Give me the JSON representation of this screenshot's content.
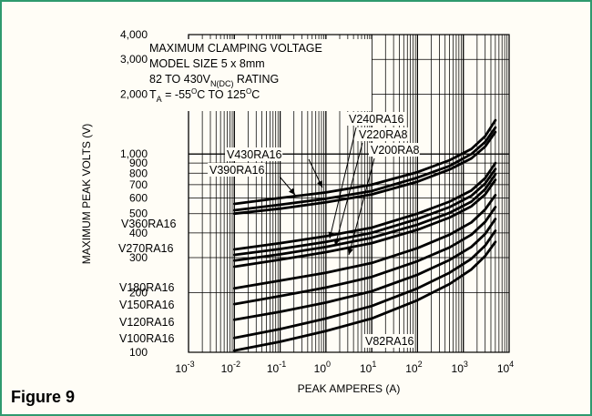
{
  "colors": {
    "frame": "#2f9a6e",
    "background": "#fffdf6",
    "ink": "#000000"
  },
  "figure_caption": "Figure 9",
  "chart_data": {
    "type": "line",
    "title": "",
    "annotation_lines": [
      {
        "main": "MAXIMUM CLAMPING VOLTAGE"
      },
      {
        "main": "MODEL SIZE 5 x 8mm"
      },
      {
        "main": "82 TO 430V",
        "sub": "N(DC)",
        "rest": " RATING"
      },
      {
        "main": "T",
        "sub": "A",
        "rest": " = -55",
        "sup": "O",
        "rest2": "C TO 125",
        "sup2": "O",
        "rest3": "C"
      }
    ],
    "xlabel": "PEAK AMPERES (A)",
    "ylabel": "MAXIMUM PEAK VOLTS (V)",
    "x_scale": "log",
    "y_scale": "log",
    "xlim": [
      0.001,
      10000
    ],
    "ylim": [
      100,
      4000
    ],
    "grid": true,
    "x_ticks": [
      {
        "value": 0.001,
        "base": "10",
        "exp": "-3"
      },
      {
        "value": 0.01,
        "base": "10",
        "exp": "-2"
      },
      {
        "value": 0.1,
        "base": "10",
        "exp": "-1"
      },
      {
        "value": 1,
        "base": "10",
        "exp": "0"
      },
      {
        "value": 10,
        "base": "10",
        "exp": "1"
      },
      {
        "value": 100,
        "base": "10",
        "exp": "2"
      },
      {
        "value": 1000,
        "base": "10",
        "exp": "3"
      },
      {
        "value": 10000,
        "base": "10",
        "exp": "4"
      }
    ],
    "y_ticks": [
      {
        "value": 4000,
        "label": "4,000"
      },
      {
        "value": 3000,
        "label": "3,000"
      },
      {
        "value": 2000,
        "label": "2,000"
      },
      {
        "value": 1000,
        "label": "1,000"
      },
      {
        "value": 900,
        "label": "900"
      },
      {
        "value": 800,
        "label": "800"
      },
      {
        "value": 700,
        "label": "700"
      },
      {
        "value": 600,
        "label": "600"
      },
      {
        "value": 500,
        "label": "500"
      },
      {
        "value": 400,
        "label": "400"
      },
      {
        "value": 300,
        "label": "300"
      },
      {
        "value": 200,
        "label": "200"
      },
      {
        "value": 100,
        "label": "100"
      }
    ],
    "series": [
      {
        "name": "V430RA16",
        "x": [
          0.01,
          0.1,
          1,
          10,
          100,
          500,
          1500,
          3000,
          5000
        ],
        "y": [
          560,
          600,
          640,
          700,
          810,
          930,
          1060,
          1230,
          1480
        ]
      },
      {
        "name": "V390RA16",
        "x": [
          0.01,
          0.1,
          1,
          10,
          100,
          500,
          1500,
          3000,
          5000
        ],
        "y": [
          520,
          555,
          595,
          650,
          760,
          870,
          1000,
          1150,
          1360
        ]
      },
      {
        "name": "V360RA16",
        "x": [
          0.01,
          0.1,
          1,
          10,
          100,
          500,
          1500,
          3000,
          5000
        ],
        "y": [
          500,
          530,
          570,
          625,
          725,
          835,
          950,
          1090,
          1290
        ]
      },
      {
        "name": "V240RA16",
        "x": [
          0.01,
          0.1,
          1,
          10,
          100,
          500,
          1500,
          3000,
          5000
        ],
        "y": [
          330,
          355,
          385,
          425,
          500,
          575,
          655,
          755,
          900
        ]
      },
      {
        "name": "V220RA8",
        "x": [
          0.01,
          0.1,
          1,
          10,
          100,
          500,
          1500,
          3000,
          5000
        ],
        "y": [
          310,
          332,
          360,
          400,
          470,
          540,
          615,
          710,
          840
        ]
      },
      {
        "name": "V200RA8",
        "x": [
          0.01,
          0.1,
          1,
          10,
          100,
          500,
          1500,
          3000,
          5000
        ],
        "y": [
          290,
          312,
          340,
          378,
          440,
          505,
          575,
          665,
          790
        ]
      },
      {
        "name": "V270RA16",
        "x": [
          0.01,
          0.1,
          1,
          10,
          100,
          500,
          1500,
          3000,
          5000
        ],
        "y": [
          270,
          293,
          320,
          355,
          415,
          478,
          545,
          625,
          740
        ]
      },
      {
        "name": "V180RA16",
        "x": [
          0.01,
          0.1,
          1,
          10,
          100,
          500,
          1500,
          3000,
          5000
        ],
        "y": [
          210,
          230,
          252,
          282,
          335,
          392,
          452,
          525,
          620
        ]
      },
      {
        "name": "V150RA16",
        "x": [
          0.01,
          0.1,
          1,
          10,
          100,
          500,
          1500,
          3000,
          5000
        ],
        "y": [
          175,
          192,
          212,
          240,
          288,
          338,
          392,
          455,
          540
        ]
      },
      {
        "name": "V120RA16",
        "x": [
          0.01,
          0.1,
          1,
          10,
          100,
          500,
          1500,
          3000,
          5000
        ],
        "y": [
          146,
          160,
          178,
          203,
          246,
          292,
          340,
          395,
          470
        ]
      },
      {
        "name": "V100RA16",
        "x": [
          0.01,
          0.1,
          1,
          10,
          100,
          500,
          1500,
          3000,
          5000
        ],
        "y": [
          118,
          131,
          148,
          171,
          210,
          252,
          296,
          345,
          410
        ]
      },
      {
        "name": "V82RA16",
        "x": [
          0.01,
          0.1,
          1,
          10,
          100,
          500,
          1500,
          3000,
          5000
        ],
        "y": [
          102,
          113,
          128,
          148,
          183,
          221,
          262,
          306,
          360
        ]
      }
    ]
  }
}
